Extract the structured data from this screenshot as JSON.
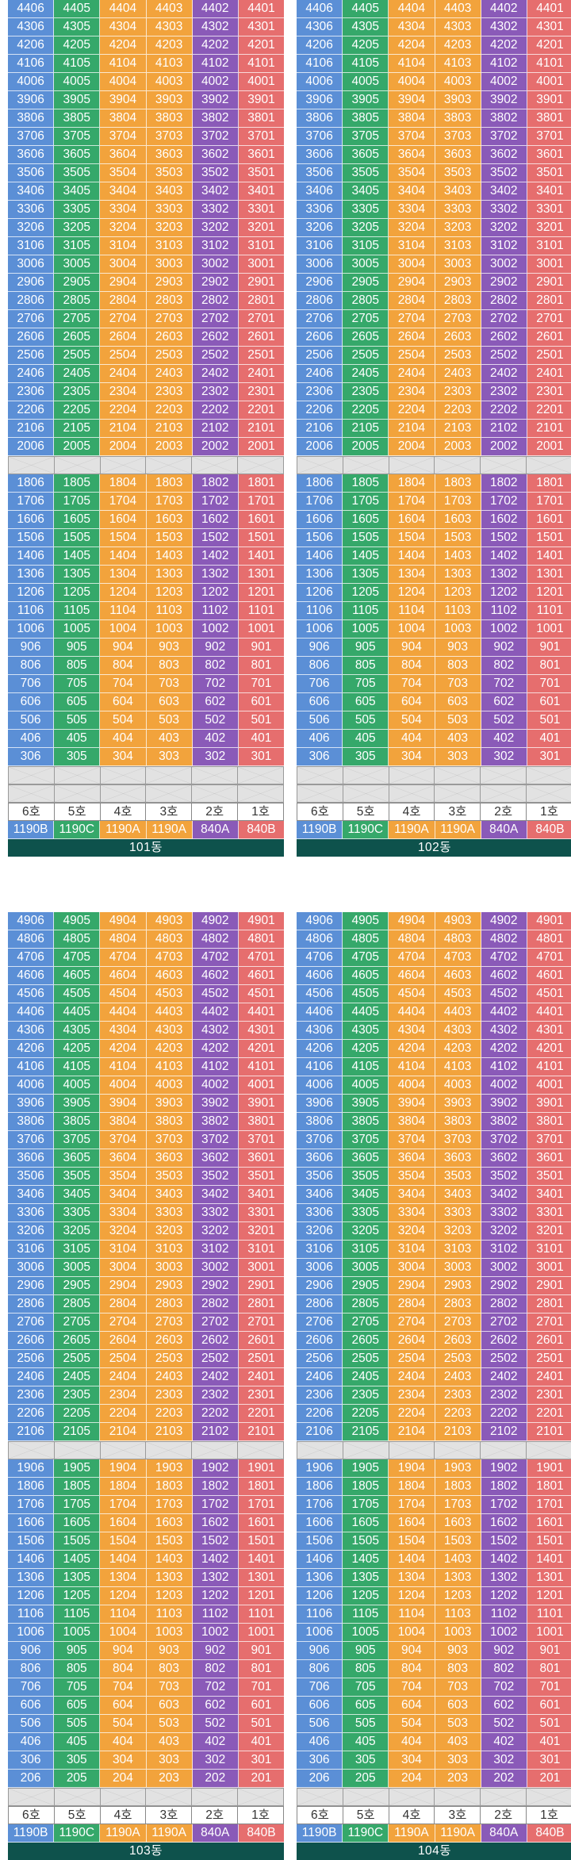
{
  "colors": {
    "unit_col_1": "#5b8fd6",
    "unit_col_2": "#35a86a",
    "unit_col_3": "#f2a33c",
    "unit_col_4": "#f2a33c",
    "unit_col_5": "#8a5ab8",
    "unit_col_6": "#e66e6e",
    "building_label_bg": "#0e524c",
    "gap_floor": "#e2e2e2"
  },
  "ho_labels": [
    "6호",
    "5호",
    "4호",
    "3호",
    "2호",
    "1호"
  ],
  "unit_types": [
    "1190B",
    "1190C",
    "1190A",
    "1190A",
    "840A",
    "840B"
  ],
  "buildings": [
    {
      "name": "101동",
      "upper_floors": [
        44,
        43,
        42,
        41,
        40,
        39,
        38,
        37,
        36,
        35,
        34,
        33,
        32,
        31,
        30,
        29,
        28,
        27,
        26,
        25,
        24,
        23,
        22,
        21,
        20
      ],
      "lower_floors": [
        18,
        17,
        16,
        15,
        14,
        13,
        12,
        11,
        10,
        9,
        8,
        7,
        6,
        5,
        4,
        3
      ],
      "empty_rows_bottom": 2
    },
    {
      "name": "102동",
      "upper_floors": [
        44,
        43,
        42,
        41,
        40,
        39,
        38,
        37,
        36,
        35,
        34,
        33,
        32,
        31,
        30,
        29,
        28,
        27,
        26,
        25,
        24,
        23,
        22,
        21,
        20
      ],
      "lower_floors": [
        18,
        17,
        16,
        15,
        14,
        13,
        12,
        11,
        10,
        9,
        8,
        7,
        6,
        5,
        4,
        3
      ],
      "empty_rows_bottom": 2
    },
    {
      "name": "103동",
      "upper_floors": [
        49,
        48,
        47,
        46,
        45,
        44,
        43,
        42,
        41,
        40,
        39,
        38,
        37,
        36,
        35,
        34,
        33,
        32,
        31,
        30,
        29,
        28,
        27,
        26,
        25,
        24,
        23,
        22,
        21
      ],
      "lower_floors": [
        19,
        18,
        17,
        16,
        15,
        14,
        13,
        12,
        11,
        10,
        9,
        8,
        7,
        6,
        5,
        4,
        3,
        2
      ],
      "empty_rows_bottom": 1
    },
    {
      "name": "104동",
      "upper_floors": [
        49,
        48,
        47,
        46,
        45,
        44,
        43,
        42,
        41,
        40,
        39,
        38,
        37,
        36,
        35,
        34,
        33,
        32,
        31,
        30,
        29,
        28,
        27,
        26,
        25,
        24,
        23,
        22,
        21
      ],
      "lower_floors": [
        19,
        18,
        17,
        16,
        15,
        14,
        13,
        12,
        11,
        10,
        9,
        8,
        7,
        6,
        5,
        4,
        3,
        2
      ],
      "empty_rows_bottom": 1
    }
  ]
}
